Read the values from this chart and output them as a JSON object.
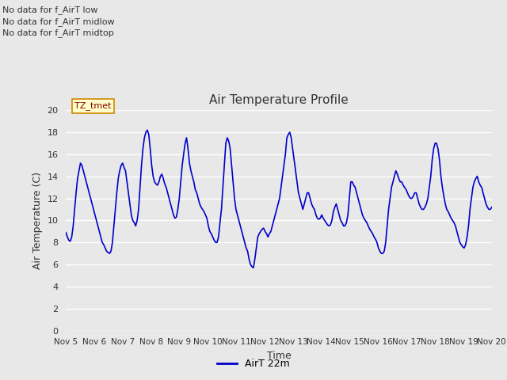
{
  "title": "Air Temperature Profile",
  "xlabel": "Time",
  "ylabel": "Air Temperature (C)",
  "ylim": [
    0,
    20
  ],
  "yticks": [
    0,
    2,
    4,
    6,
    8,
    10,
    12,
    14,
    16,
    18,
    20
  ],
  "xtick_labels": [
    "Nov 5",
    "Nov 6",
    "Nov 7",
    "Nov 8",
    "Nov 9",
    "Nov 10",
    "Nov 11",
    "Nov 12",
    "Nov 13",
    "Nov 14",
    "Nov 15",
    "Nov 16",
    "Nov 17",
    "Nov 18",
    "Nov 19",
    "Nov 20"
  ],
  "line_color": "#0000cc",
  "line_width": 1.2,
  "bg_color": "#e8e8e8",
  "plot_bg_color": "#e8e8e8",
  "legend_label": "AirT 22m",
  "annotations": [
    "No data for f_AirT low",
    "No data for f_AirT midlow",
    "No data for f_AirT midtop"
  ],
  "tz_label": "TZ_tmet",
  "y_values": [
    8.9,
    8.5,
    8.2,
    8.1,
    8.5,
    9.5,
    11.0,
    12.5,
    13.8,
    14.5,
    15.2,
    15.0,
    14.5,
    14.0,
    13.5,
    13.0,
    12.5,
    12.0,
    11.5,
    11.0,
    10.5,
    10.0,
    9.5,
    9.0,
    8.5,
    8.0,
    7.8,
    7.5,
    7.2,
    7.1,
    7.0,
    7.2,
    8.0,
    9.5,
    11.0,
    12.5,
    13.8,
    14.5,
    15.0,
    15.2,
    14.8,
    14.5,
    13.5,
    12.5,
    11.5,
    10.5,
    10.0,
    9.8,
    9.5,
    10.0,
    11.0,
    13.0,
    15.0,
    16.5,
    17.5,
    18.0,
    18.2,
    17.8,
    16.5,
    15.0,
    14.0,
    13.5,
    13.3,
    13.2,
    13.5,
    14.0,
    14.2,
    13.8,
    13.3,
    13.0,
    12.5,
    12.0,
    11.5,
    11.0,
    10.5,
    10.2,
    10.3,
    11.0,
    12.0,
    13.5,
    15.0,
    16.0,
    17.0,
    17.5,
    16.5,
    15.2,
    14.5,
    14.0,
    13.5,
    12.8,
    12.5,
    12.0,
    11.5,
    11.2,
    11.0,
    10.8,
    10.5,
    10.2,
    9.5,
    9.0,
    8.8,
    8.5,
    8.2,
    8.0,
    8.0,
    8.5,
    9.8,
    11.0,
    13.0,
    15.0,
    17.0,
    17.5,
    17.2,
    16.5,
    15.0,
    13.5,
    12.0,
    11.0,
    10.5,
    10.0,
    9.5,
    9.0,
    8.5,
    8.0,
    7.5,
    7.2,
    6.5,
    6.0,
    5.8,
    5.7,
    6.5,
    7.5,
    8.5,
    8.8,
    9.0,
    9.2,
    9.3,
    9.0,
    8.8,
    8.5,
    8.8,
    9.0,
    9.5,
    10.0,
    10.5,
    11.0,
    11.5,
    12.0,
    13.0,
    14.0,
    15.0,
    16.0,
    17.5,
    17.8,
    18.0,
    17.5,
    16.5,
    15.5,
    14.5,
    13.5,
    12.5,
    12.0,
    11.5,
    11.0,
    11.5,
    12.0,
    12.5,
    12.5,
    12.0,
    11.5,
    11.2,
    11.0,
    10.5,
    10.2,
    10.1,
    10.2,
    10.5,
    10.2,
    10.0,
    9.8,
    9.6,
    9.5,
    9.6,
    10.0,
    10.8,
    11.2,
    11.5,
    11.0,
    10.5,
    10.0,
    9.8,
    9.5,
    9.5,
    9.8,
    10.5,
    12.0,
    13.5,
    13.5,
    13.2,
    13.0,
    12.5,
    12.0,
    11.5,
    11.0,
    10.5,
    10.2,
    10.0,
    9.8,
    9.5,
    9.2,
    9.0,
    8.8,
    8.5,
    8.3,
    8.0,
    7.5,
    7.2,
    7.0,
    7.0,
    7.2,
    8.0,
    9.5,
    11.0,
    12.0,
    13.0,
    13.5,
    14.0,
    14.5,
    14.2,
    13.8,
    13.5,
    13.5,
    13.2,
    13.0,
    12.8,
    12.5,
    12.2,
    12.0,
    12.0,
    12.2,
    12.5,
    12.5,
    12.0,
    11.5,
    11.2,
    11.0,
    11.0,
    11.2,
    11.5,
    12.0,
    13.0,
    14.0,
    15.5,
    16.5,
    17.0,
    17.0,
    16.5,
    15.5,
    14.0,
    13.0,
    12.2,
    11.5,
    11.0,
    10.8,
    10.5,
    10.2,
    10.0,
    9.8,
    9.5,
    9.0,
    8.5,
    8.0,
    7.8,
    7.6,
    7.5,
    7.8,
    8.5,
    9.5,
    11.0,
    12.0,
    13.0,
    13.5,
    13.8,
    14.0,
    13.5,
    13.2,
    13.0,
    12.5,
    12.0,
    11.5,
    11.2,
    11.0,
    11.0,
    11.2
  ]
}
